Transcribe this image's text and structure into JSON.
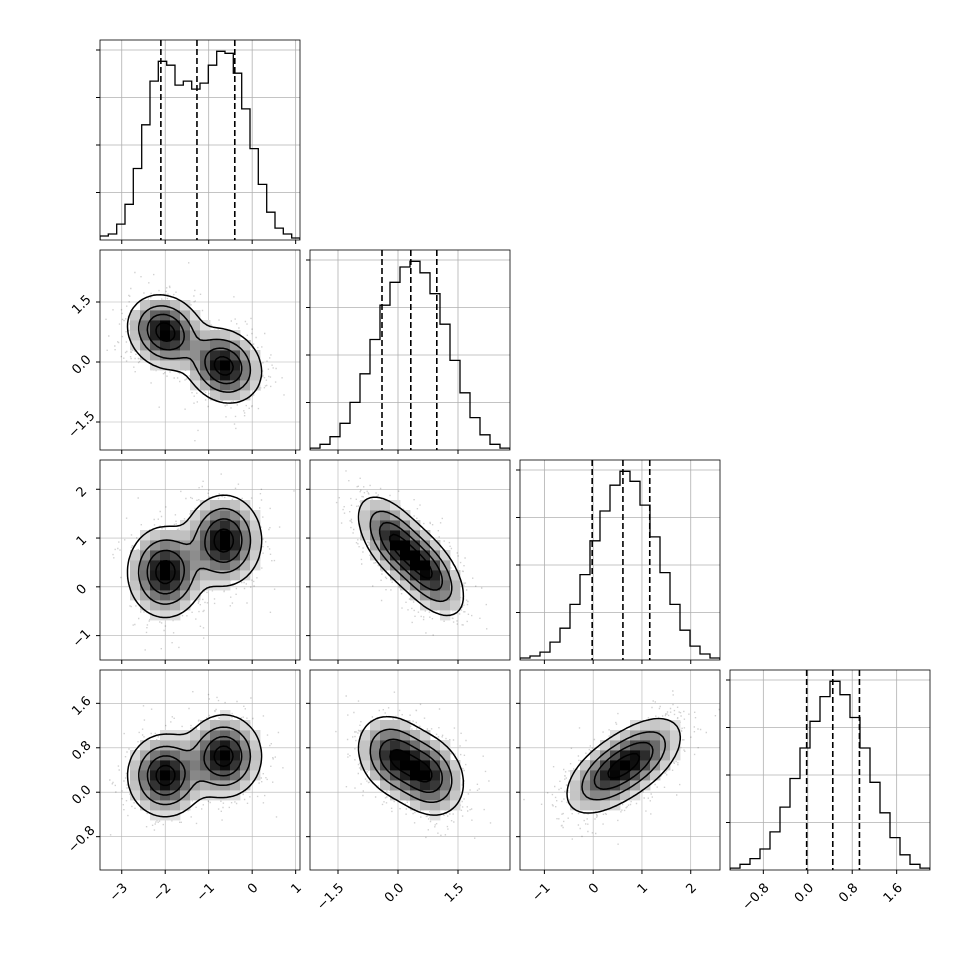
{
  "chart_data": {
    "type": "corner",
    "grid": true,
    "quantile_lines": "dashed",
    "params": [
      {
        "id": "p0",
        "range": [
          -3.5,
          1.1
        ],
        "ticks": [
          -3,
          -2,
          -1,
          0,
          1
        ],
        "tick_labels": [
          "−3",
          "−2",
          "−1",
          "0",
          "1"
        ],
        "quantiles": [
          -2.1,
          -1.27,
          -0.4
        ]
      },
      {
        "id": "p1",
        "range": [
          -2.2,
          2.8
        ],
        "ticks": [
          -1.5,
          0.0,
          1.5
        ],
        "tick_labels": [
          "−1.5",
          "0.0",
          "1.5"
        ],
        "quantiles": [
          -0.4,
          0.32,
          0.97
        ]
      },
      {
        "id": "p2",
        "range": [
          -1.5,
          2.6
        ],
        "ticks": [
          -1,
          0,
          1,
          2
        ],
        "tick_labels": [
          "−1",
          "0",
          "1",
          "2"
        ],
        "quantiles": [
          -0.02,
          0.61,
          1.16
        ]
      },
      {
        "id": "p3",
        "range": [
          -1.4,
          2.2
        ],
        "ticks": [
          -0.8,
          0.0,
          0.8,
          1.6
        ],
        "tick_labels": [
          "−0.8",
          "0.0",
          "0.8",
          "1.6"
        ],
        "quantiles": [
          -0.02,
          0.45,
          0.93
        ]
      }
    ],
    "histograms": [
      {
        "param": "p0",
        "counts": [
          2,
          3,
          8,
          18,
          36,
          58,
          80,
          90,
          88,
          78,
          80,
          76,
          79,
          88,
          95,
          94,
          84,
          66,
          46,
          28,
          14,
          6,
          3,
          1
        ]
      },
      {
        "param": "p1",
        "counts": [
          1,
          3,
          7,
          14,
          25,
          40,
          58,
          76,
          88,
          96,
          99,
          93,
          82,
          66,
          47,
          30,
          17,
          8,
          3,
          1
        ]
      },
      {
        "param": "p2",
        "counts": [
          1,
          2,
          4,
          9,
          16,
          28,
          43,
          60,
          75,
          88,
          95,
          90,
          78,
          62,
          44,
          28,
          15,
          7,
          3,
          1
        ]
      },
      {
        "param": "p3",
        "counts": [
          1,
          3,
          6,
          11,
          20,
          33,
          48,
          64,
          78,
          91,
          99,
          92,
          80,
          64,
          46,
          30,
          17,
          8,
          3,
          1
        ]
      }
    ],
    "mixture": {
      "weights": [
        0.5,
        0.5
      ],
      "means": [
        [
          -2.0,
          0.75,
          0.3,
          0.3
        ],
        [
          -0.65,
          -0.1,
          0.95,
          0.65
        ]
      ],
      "sigma": [
        0.42,
        0.45,
        0.45,
        0.36
      ],
      "correlations": [
        [
          1,
          -0.15,
          0,
          0
        ],
        [
          -0.15,
          1,
          -0.55,
          -0.2
        ],
        [
          0,
          -0.55,
          1,
          0.5
        ],
        [
          0,
          -0.2,
          0.5,
          1
        ]
      ]
    }
  }
}
